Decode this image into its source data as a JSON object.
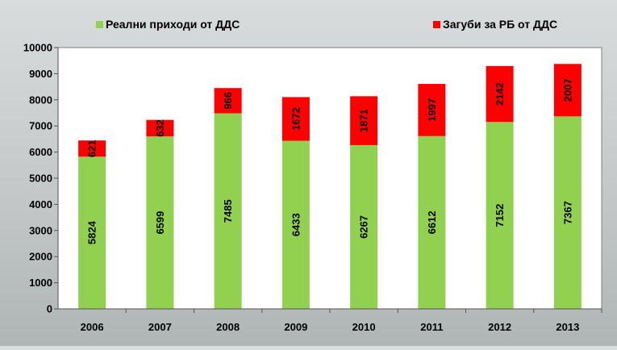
{
  "chart_data": {
    "type": "bar",
    "stacked": true,
    "categories": [
      "2006",
      "2007",
      "2008",
      "2009",
      "2010",
      "2011",
      "2012",
      "2013"
    ],
    "series": [
      {
        "name": "Реални приходи от ДДС",
        "color": "#92d050",
        "values": [
          5824,
          6599,
          7485,
          6433,
          6267,
          6612,
          7152,
          7367
        ]
      },
      {
        "name": "Загуби за РБ от ДДС",
        "color": "#ff0000",
        "values": [
          621,
          632,
          966,
          1672,
          1871,
          1997,
          2142,
          2007
        ]
      }
    ],
    "ylim": [
      0,
      10000
    ],
    "yticks": [
      "0",
      "1000",
      "2000",
      "3000",
      "4000",
      "5000",
      "6000",
      "7000",
      "8000",
      "9000",
      "10000"
    ],
    "grid": false,
    "legend_position": "top",
    "data_labels": "vertical"
  }
}
